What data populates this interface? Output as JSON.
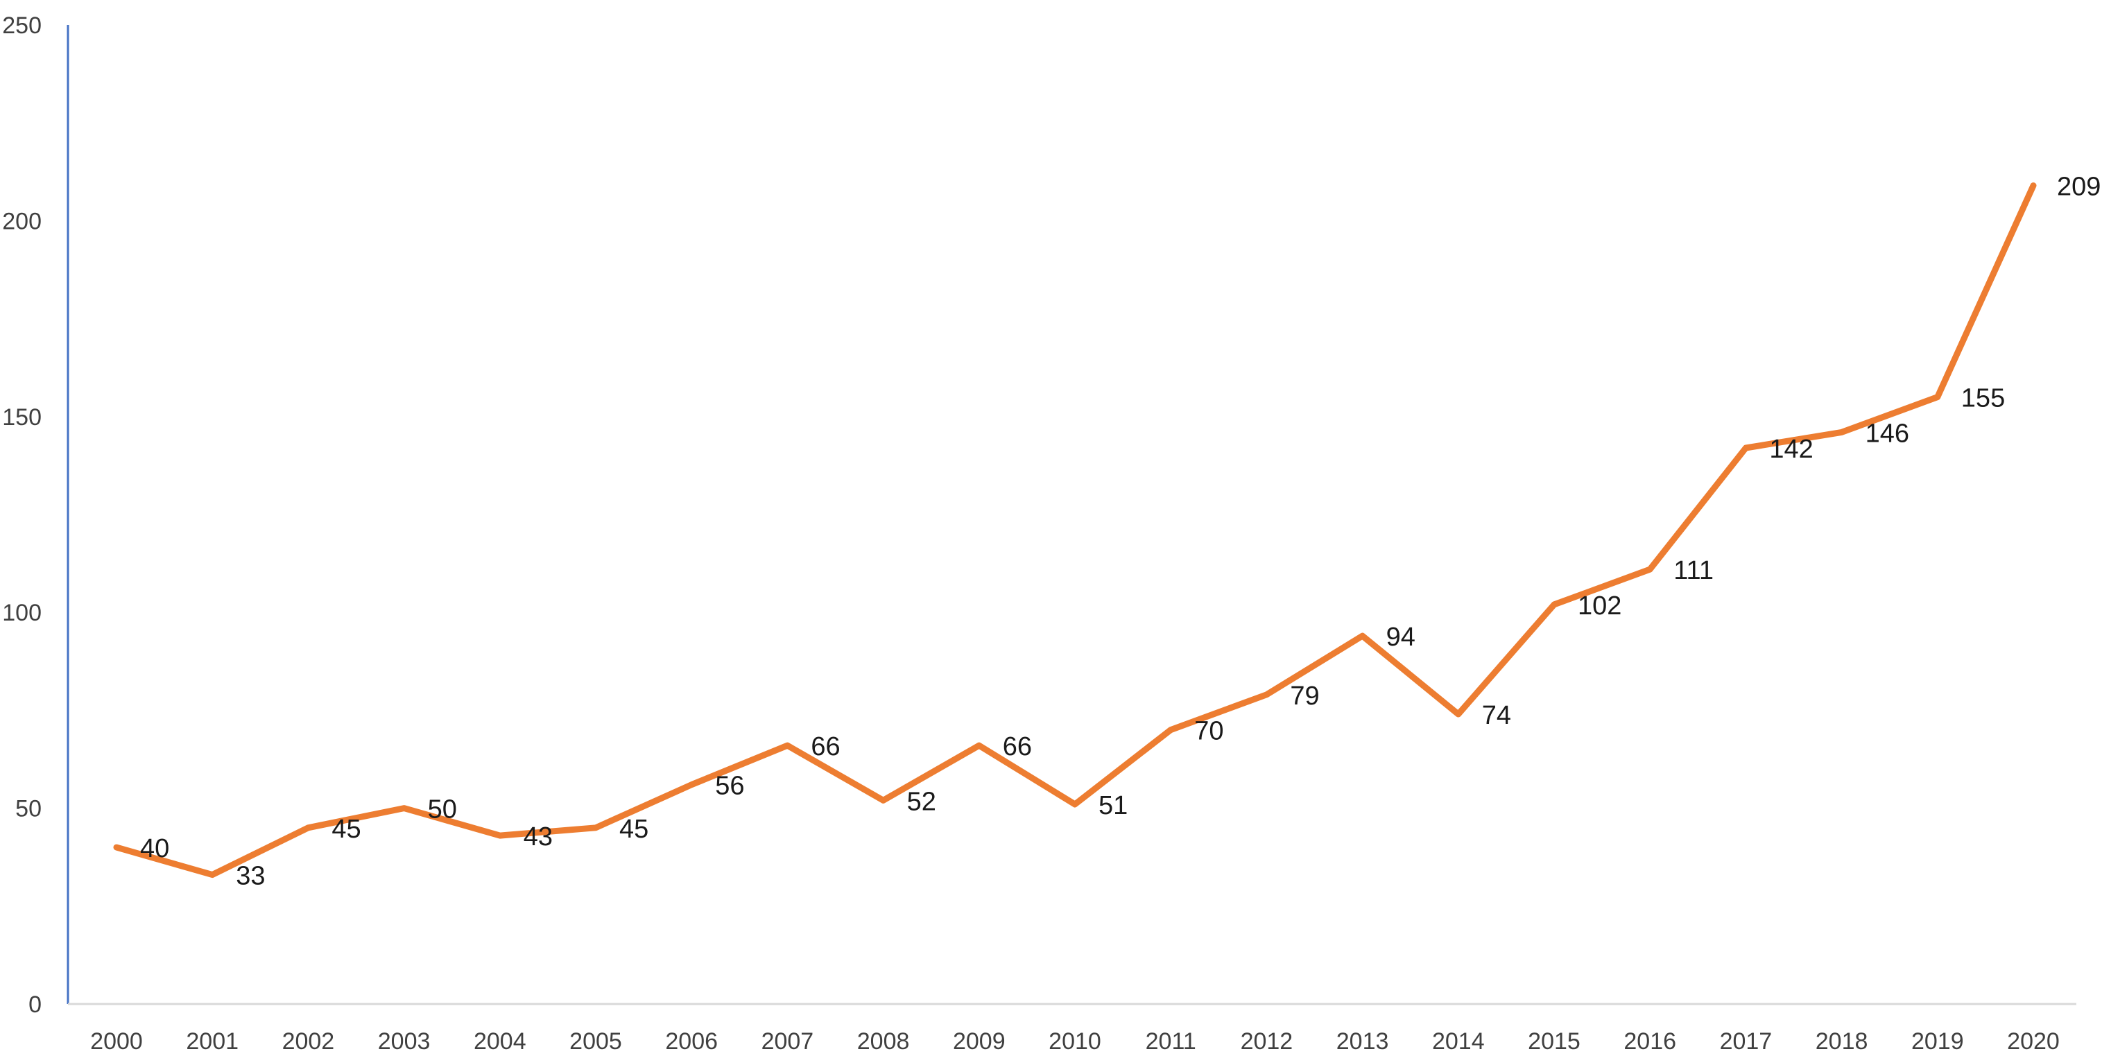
{
  "chart_data": {
    "type": "line",
    "title": "",
    "xlabel": "",
    "ylabel": "",
    "categories": [
      "2000",
      "2001",
      "2002",
      "2003",
      "2004",
      "2005",
      "2006",
      "2007",
      "2008",
      "2009",
      "2010",
      "2011",
      "2012",
      "2013",
      "2014",
      "2015",
      "2016",
      "2017",
      "2018",
      "2019",
      "2020"
    ],
    "series": [
      {
        "values": [
          40,
          33,
          45,
          50,
          43,
          45,
          56,
          66,
          52,
          66,
          51,
          70,
          79,
          94,
          74,
          102,
          111,
          142,
          146,
          155,
          209
        ],
        "color": "#ED7D31"
      }
    ],
    "ylim": [
      0,
      250
    ],
    "yticks": [
      "0",
      "50",
      "100",
      "150",
      "200",
      "250"
    ],
    "grid": false,
    "legend": "none",
    "colors": {
      "line": "#ED7D31",
      "y_axis": "#4472C4",
      "x_axis": "#d9d9d9",
      "tick_text": "#404040",
      "data_label_text": "#1a1a1a"
    }
  }
}
